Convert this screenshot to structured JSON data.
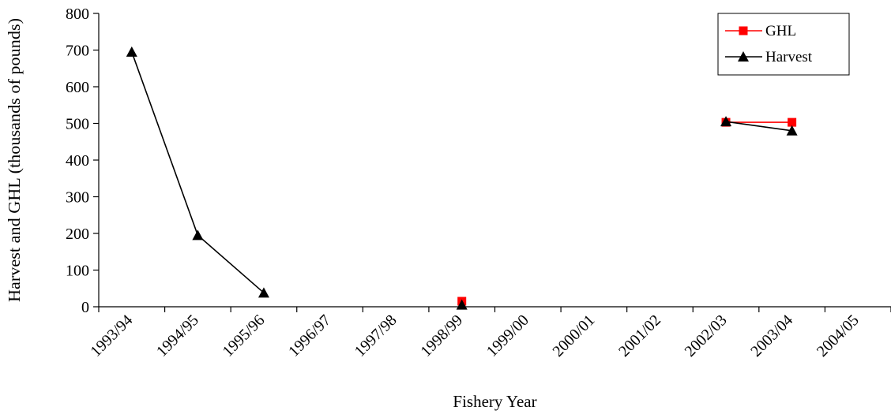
{
  "chart_data": {
    "type": "line",
    "xlabel": "Fishery Year",
    "ylabel": "Harvest and GHL (thousands of pounds)",
    "categories": [
      "1993/94",
      "1994/95",
      "1995/96",
      "1996/97",
      "1997/98",
      "1998/99",
      "1999/00",
      "2000/01",
      "2001/02",
      "2002/03",
      "2003/04",
      "2004/05"
    ],
    "ylim": [
      0,
      800
    ],
    "yticks": [
      0,
      100,
      200,
      300,
      400,
      500,
      600,
      700,
      800
    ],
    "grid": false,
    "legend_position": "top-right",
    "series": [
      {
        "name": "GHL",
        "color": "#ff0000",
        "marker": "square",
        "values": [
          null,
          null,
          null,
          null,
          null,
          15,
          null,
          null,
          null,
          503,
          503,
          null
        ]
      },
      {
        "name": "Harvest",
        "color": "#000000",
        "marker": "triangle",
        "values": [
          695,
          195,
          38,
          null,
          null,
          5,
          null,
          null,
          null,
          505,
          480,
          null
        ]
      }
    ]
  }
}
